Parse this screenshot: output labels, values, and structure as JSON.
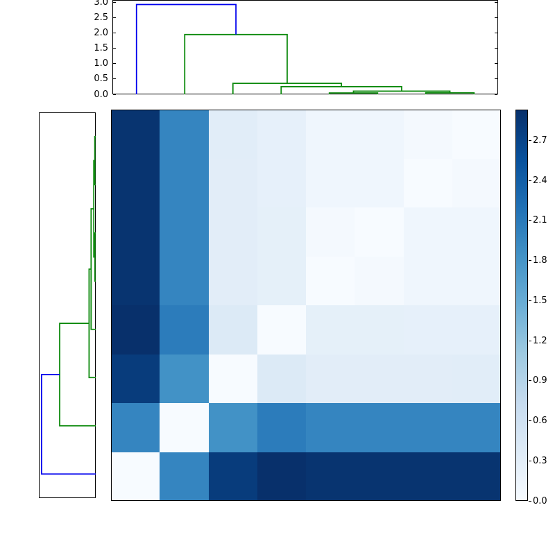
{
  "figure": {
    "background": "#ffffff",
    "axis_color": "#000000",
    "link_colors": {
      "above_threshold": "#0000ee",
      "cluster": "#0d8a0d"
    }
  },
  "chart_data": {
    "type": "heatmap",
    "title": "",
    "description": "Hierarchically-clustered pairwise distance matrix (8x8) shown as a Blues heatmap with a dendrogram above (column order) and a mirrored dendrogram at left (row order, reversed), plus a vertical colorbar on the right.",
    "colormap": "Blues",
    "colormap_stops": [
      "#f7fbff",
      "#deebf7",
      "#c6dbef",
      "#9ecae1",
      "#6baed6",
      "#4292c6",
      "#2171b5",
      "#08519c",
      "#08306b"
    ],
    "vmin": 0,
    "vmax": 2.93,
    "n_items": 8,
    "column_order": [
      0,
      1,
      2,
      3,
      4,
      5,
      6,
      7
    ],
    "row_order": [
      7,
      6,
      5,
      4,
      3,
      2,
      1,
      0
    ],
    "distance_matrix": [
      [
        0,
        1.97,
        2.8,
        2.93,
        2.89,
        2.89,
        2.89,
        2.89
      ],
      [
        1.97,
        0,
        1.83,
        2.07,
        1.97,
        1.97,
        1.97,
        1.97
      ],
      [
        2.8,
        1.83,
        0,
        0.4,
        0.31,
        0.31,
        0.31,
        0.32
      ],
      [
        2.93,
        2.07,
        0.4,
        0,
        0.26,
        0.26,
        0.25,
        0.25
      ],
      [
        2.89,
        1.97,
        0.31,
        0.26,
        0,
        0.045,
        0.11,
        0.11
      ],
      [
        2.89,
        1.97,
        0.31,
        0.26,
        0.045,
        0,
        0.11,
        0.11
      ],
      [
        2.89,
        1.97,
        0.31,
        0.25,
        0.11,
        0.11,
        0,
        0.05
      ],
      [
        2.89,
        1.97,
        0.32,
        0.25,
        0.11,
        0.11,
        0.05,
        0
      ]
    ],
    "dendrogram_merges": [
      {
        "a_pos": 4.5,
        "a_h": 0,
        "b_pos": 5.5,
        "b_h": 0,
        "h": 0.045,
        "color": "cluster"
      },
      {
        "a_pos": 6.5,
        "a_h": 0,
        "b_pos": 7.5,
        "b_h": 0,
        "h": 0.05,
        "color": "cluster"
      },
      {
        "a_pos": 5.0,
        "a_h": 0.045,
        "b_pos": 7.0,
        "b_h": 0.05,
        "h": 0.105,
        "color": "cluster"
      },
      {
        "a_pos": 3.5,
        "a_h": 0,
        "b_pos": 6.0,
        "b_h": 0.105,
        "h": 0.25,
        "color": "cluster"
      },
      {
        "a_pos": 2.5,
        "a_h": 0,
        "b_pos": 4.75,
        "b_h": 0.25,
        "h": 0.36,
        "color": "cluster"
      },
      {
        "a_pos": 1.5,
        "a_h": 0,
        "b_pos": 3.625,
        "b_h": 0.36,
        "h": 1.95,
        "color": "cluster"
      },
      {
        "a_pos": 0.5,
        "a_h": 0,
        "b_pos": 2.5625,
        "b_h": 1.95,
        "h": 2.93,
        "color": "above_threshold"
      }
    ],
    "top_dendrogram_axis": {
      "tick_labels": [
        "0.0",
        "0.5",
        "1.0",
        "1.5",
        "2.0",
        "2.5",
        "3.0"
      ],
      "tick_values": [
        0,
        0.5,
        1.0,
        1.5,
        2.0,
        2.5,
        3.0
      ],
      "axis_max": 3.077
    },
    "left_dendrogram_axis": {
      "tick_labels": [],
      "axis_max": 3.077
    },
    "colorbar": {
      "tick_labels": [
        "0.0",
        "0.3",
        "0.6",
        "0.9",
        "1.2",
        "1.5",
        "1.8",
        "2.1",
        "2.4",
        "2.7"
      ],
      "tick_values": [
        0,
        0.3,
        0.6,
        0.9,
        1.2,
        1.5,
        1.8,
        2.1,
        2.4,
        2.7
      ]
    }
  }
}
